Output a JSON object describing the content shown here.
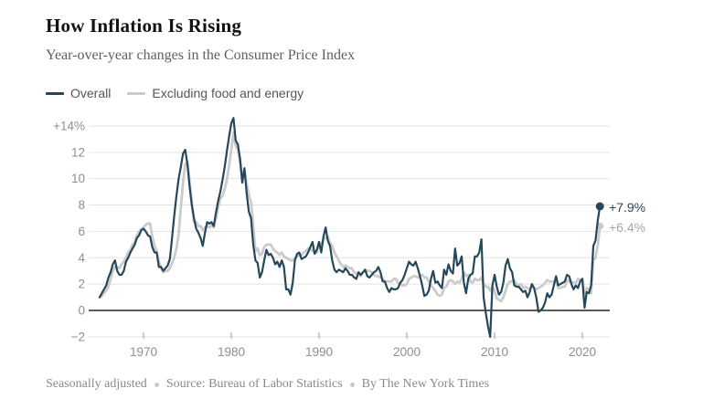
{
  "chart_data": {
    "type": "line",
    "title": "How Inflation Is Rising",
    "subtitle": "Year-over-year changes in the Consumer Price Index",
    "x_start": 1965.0,
    "x_step": 0.25,
    "xlim": [
      1964.5,
      2023
    ],
    "ylim": [
      -2.4,
      14.5
    ],
    "grid": "horizontal",
    "legend_position": "top-left",
    "zero_line": true,
    "y_ticks": [
      {
        "value": 14,
        "label": "+14%"
      },
      {
        "value": 12,
        "label": "12"
      },
      {
        "value": 10,
        "label": "10"
      },
      {
        "value": 8,
        "label": "8"
      },
      {
        "value": 6,
        "label": "6"
      },
      {
        "value": 4,
        "label": "4"
      },
      {
        "value": 2,
        "label": "2"
      },
      {
        "value": 0,
        "label": "0"
      },
      {
        "value": -2,
        "label": "−2"
      }
    ],
    "x_ticks": [
      {
        "value": 1970,
        "label": "1970"
      },
      {
        "value": 1980,
        "label": "1980"
      },
      {
        "value": 1990,
        "label": "1990"
      },
      {
        "value": 2000,
        "label": "2000"
      },
      {
        "value": 2010,
        "label": "2010"
      },
      {
        "value": 2020,
        "label": "2020"
      }
    ],
    "series": [
      {
        "name": "Overall",
        "color": "#264759",
        "label_color": "#264759",
        "end_label": "+7.9%",
        "end_value": 7.9,
        "values": [
          1.0,
          1.3,
          1.6,
          1.9,
          2.5,
          2.9,
          3.5,
          3.8,
          3.0,
          2.7,
          2.7,
          3.0,
          3.7,
          4.0,
          4.4,
          4.7,
          5.0,
          5.5,
          5.7,
          6.1,
          6.2,
          6.0,
          5.7,
          5.6,
          4.8,
          4.4,
          4.4,
          3.3,
          3.3,
          3.0,
          3.2,
          3.4,
          3.9,
          5.5,
          7.2,
          8.7,
          10.0,
          10.9,
          11.9,
          12.2,
          11.1,
          9.4,
          8.0,
          7.0,
          6.2,
          5.9,
          5.5,
          4.9,
          5.9,
          6.7,
          6.6,
          6.7,
          6.4,
          7.4,
          8.3,
          9.0,
          9.9,
          10.9,
          12.1,
          13.2,
          14.2,
          14.6,
          12.9,
          12.6,
          11.5,
          9.7,
          10.8,
          8.9,
          7.5,
          7.0,
          5.0,
          3.8,
          3.6,
          2.5,
          2.9,
          3.8,
          4.6,
          4.2,
          4.3,
          4.0,
          3.5,
          3.7,
          3.3,
          3.8,
          3.3,
          1.6,
          1.6,
          1.2,
          2.1,
          3.8,
          4.3,
          4.4,
          3.9,
          4.0,
          4.1,
          4.4,
          4.8,
          5.2,
          4.3,
          4.6,
          5.2,
          4.4,
          5.6,
          6.3,
          5.3,
          4.9,
          3.8,
          3.1,
          2.9,
          3.1,
          3.0,
          2.9,
          3.2,
          3.0,
          2.7,
          2.7,
          2.5,
          2.4,
          2.9,
          2.7,
          2.9,
          3.1,
          2.6,
          2.5,
          2.7,
          2.9,
          3.0,
          3.3,
          2.9,
          2.2,
          2.2,
          1.7,
          1.4,
          1.7,
          1.6,
          1.6,
          1.7,
          2.1,
          2.3,
          2.7,
          3.2,
          3.7,
          3.5,
          3.4,
          3.7,
          3.2,
          2.6,
          1.9,
          1.1,
          1.2,
          1.5,
          2.4,
          3.0,
          2.1,
          2.2,
          1.9,
          1.7,
          3.1,
          2.7,
          3.5,
          3.0,
          2.8,
          4.7,
          3.4,
          3.6,
          4.1,
          2.1,
          1.3,
          2.4,
          2.7,
          2.8,
          4.1,
          4.1,
          4.4,
          5.4,
          1.0,
          -0.2,
          -1.2,
          -2.0,
          1.9,
          2.7,
          1.8,
          1.2,
          1.4,
          2.1,
          3.4,
          3.9,
          3.2,
          2.9,
          1.9,
          1.8,
          1.8,
          1.6,
          1.4,
          1.5,
          1.0,
          1.4,
          2.0,
          1.7,
          1.0,
          -0.1,
          0.0,
          0.2,
          0.6,
          1.3,
          1.0,
          1.2,
          1.9,
          2.6,
          1.9,
          2.0,
          2.1,
          2.2,
          2.7,
          2.6,
          2.0,
          1.6,
          1.9,
          1.7,
          2.2,
          2.4,
          0.2,
          1.4,
          1.3,
          1.9,
          4.9,
          5.3,
          6.8,
          7.9
        ]
      },
      {
        "name": "Excluding food and energy",
        "color": "#cbcbcb",
        "label_color": "#a6a6a6",
        "end_label": "+6.4%",
        "end_value": 6.4,
        "values": [
          1.0,
          1.1,
          1.3,
          1.5,
          1.8,
          2.4,
          3.0,
          3.3,
          3.3,
          3.2,
          3.5,
          3.7,
          4.0,
          4.4,
          4.6,
          5.0,
          5.2,
          5.7,
          6.0,
          6.2,
          6.3,
          6.5,
          6.6,
          6.6,
          5.6,
          4.9,
          4.5,
          3.7,
          3.2,
          2.9,
          3.0,
          3.0,
          3.2,
          3.6,
          4.0,
          4.7,
          5.8,
          7.8,
          9.7,
          11.1,
          11.3,
          9.8,
          8.2,
          6.7,
          6.7,
          6.4,
          6.4,
          6.1,
          6.3,
          6.4,
          6.3,
          6.5,
          6.3,
          7.0,
          7.8,
          8.5,
          8.7,
          9.2,
          9.9,
          11.0,
          12.2,
          13.5,
          12.5,
          12.2,
          11.3,
          10.0,
          10.6,
          9.6,
          8.8,
          8.2,
          6.5,
          4.5,
          4.7,
          4.2,
          4.3,
          4.8,
          5.0,
          5.0,
          5.0,
          4.7,
          4.5,
          4.4,
          4.2,
          4.4,
          4.1,
          4.0,
          3.9,
          3.8,
          3.8,
          4.0,
          4.1,
          4.2,
          4.2,
          4.4,
          4.5,
          4.7,
          4.7,
          4.5,
          4.4,
          4.4,
          5.2,
          5.0,
          5.4,
          5.5,
          5.6,
          5.1,
          4.9,
          4.4,
          4.1,
          3.8,
          3.5,
          3.3,
          3.4,
          3.3,
          3.2,
          3.2,
          2.9,
          2.8,
          2.9,
          2.6,
          2.9,
          3.0,
          3.0,
          3.0,
          2.9,
          2.7,
          2.6,
          2.6,
          2.5,
          2.4,
          2.2,
          2.2,
          2.2,
          2.2,
          2.4,
          2.4,
          2.1,
          2.1,
          1.9,
          1.9,
          2.0,
          2.4,
          2.5,
          2.6,
          2.6,
          2.5,
          2.6,
          2.7,
          2.5,
          2.5,
          2.2,
          1.9,
          1.7,
          1.5,
          1.2,
          1.1,
          1.2,
          1.7,
          1.8,
          2.2,
          2.3,
          2.2,
          2.0,
          2.2,
          2.1,
          2.4,
          2.9,
          2.6,
          2.7,
          2.2,
          2.1,
          2.4,
          2.3,
          2.3,
          2.5,
          2.0,
          1.8,
          1.8,
          1.5,
          1.8,
          1.5,
          0.9,
          0.8,
          0.7,
          1.0,
          1.5,
          2.0,
          2.2,
          2.2,
          2.3,
          2.0,
          1.9,
          2.0,
          1.7,
          1.8,
          1.7,
          1.6,
          1.9,
          1.7,
          1.6,
          1.7,
          1.8,
          1.9,
          2.1,
          2.3,
          2.2,
          2.2,
          2.2,
          2.2,
          1.7,
          1.7,
          1.8,
          1.8,
          2.3,
          2.2,
          2.2,
          2.1,
          2.1,
          2.4,
          2.3,
          2.4,
          1.2,
          1.7,
          1.6,
          1.3,
          3.8,
          4.0,
          4.9,
          6.4
        ]
      }
    ],
    "colors": {
      "grid": "#e2e2e2",
      "zero_line": "#222222",
      "axis_text": "#8e8e8e",
      "tick_mark": "#9a9a9a"
    }
  },
  "footer": {
    "note": "Seasonally adjusted",
    "source": "Source: Bureau of Labor Statistics",
    "byline": "By The New York Times"
  }
}
